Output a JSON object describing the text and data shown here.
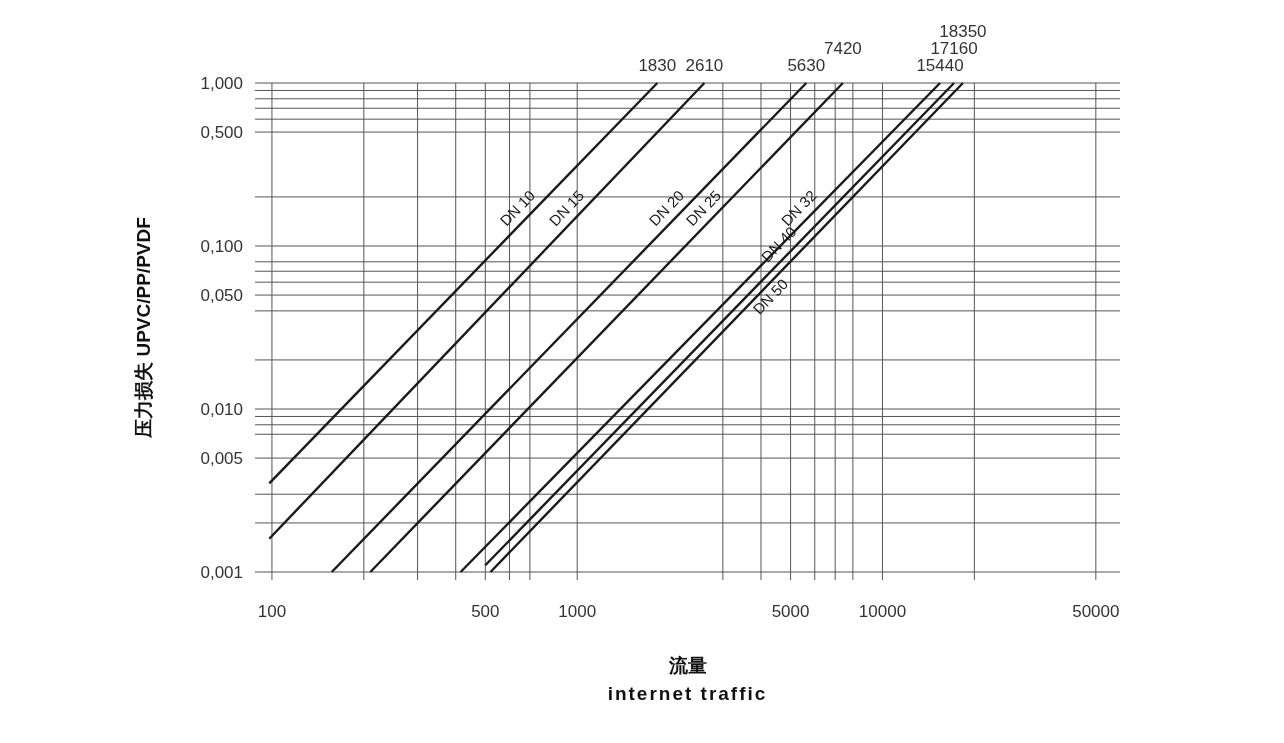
{
  "chart_data": {
    "type": "line",
    "xlabel": "流量\ninternet traffic",
    "ylabel": "压力损失  UPVC/PP/PVDF",
    "log": "xy",
    "grid": true,
    "legend": false,
    "marker": "none",
    "line_style": "solid",
    "xlim": [
      88,
      60000
    ],
    "ylim": [
      0.001,
      1
    ],
    "xticks": [
      100,
      {
        "value": 200,
        "label": null
      },
      {
        "value": 300,
        "label": null
      },
      {
        "value": 400,
        "label": null
      },
      500,
      {
        "value": 600,
        "label": null
      },
      {
        "value": 700,
        "label": null
      },
      1000,
      {
        "value": 3000,
        "label": null
      },
      {
        "value": 4000,
        "label": null
      },
      5000,
      {
        "value": 6000,
        "label": null
      },
      {
        "value": 7000,
        "label": null
      },
      {
        "value": 8000,
        "label": null
      },
      10000,
      {
        "value": 20000,
        "label": null
      },
      50000
    ],
    "yticks": [
      {
        "value": 1,
        "label": "1,000"
      },
      {
        "value": 0.9,
        "label": null
      },
      {
        "value": 0.8,
        "label": null
      },
      {
        "value": 0.7,
        "label": null
      },
      {
        "value": 0.6,
        "label": null
      },
      {
        "value": 0.5,
        "label": "0,500"
      },
      {
        "value": 0.2,
        "label": null
      },
      {
        "value": 0.1,
        "label": "0,100"
      },
      {
        "value": 0.08,
        "label": null
      },
      {
        "value": 0.07,
        "label": null
      },
      {
        "value": 0.06,
        "label": null
      },
      {
        "value": 0.05,
        "label": "0,050"
      },
      {
        "value": 0.04,
        "label": null
      },
      {
        "value": 0.02,
        "label": null
      },
      {
        "value": 0.01,
        "label": "0,010"
      },
      {
        "value": 0.009,
        "label": null
      },
      {
        "value": 0.008,
        "label": null
      },
      {
        "value": 0.007,
        "label": null
      },
      {
        "value": 0.005,
        "label": "0,005"
      },
      {
        "value": 0.003,
        "label": null
      },
      {
        "value": 0.002,
        "label": null
      },
      {
        "value": 0.001,
        "label": "0,001"
      }
    ],
    "series": [
      {
        "name": "DN 10",
        "color": "#1a1a1a",
        "x": [
          98,
          1830
        ],
        "values": [
          0.0035,
          1
        ]
      },
      {
        "name": "DN 15",
        "color": "#1a1a1a",
        "x": [
          98,
          2610
        ],
        "values": [
          0.0016,
          1
        ]
      },
      {
        "name": "DN 20",
        "color": "#1a1a1a",
        "x": [
          157,
          5630
        ],
        "values": [
          0.001,
          1
        ]
      },
      {
        "name": "DN 25",
        "color": "#1a1a1a",
        "x": [
          210,
          7420
        ],
        "values": [
          0.001,
          1
        ]
      },
      {
        "name": "DN 32",
        "color": "#1a1a1a",
        "x": [
          415,
          15440
        ],
        "values": [
          0.001,
          1
        ]
      },
      {
        "name": "DN 40",
        "color": "#1a1a1a",
        "x": [
          500,
          17160
        ],
        "values": [
          0.0011,
          1
        ]
      },
      {
        "name": "DN 50",
        "color": "#1a1a1a",
        "x": [
          520,
          18350
        ],
        "values": [
          0.001,
          1
        ]
      }
    ],
    "annotations": [
      {
        "text": "1830",
        "x": 1830,
        "y": 1
      },
      {
        "text": "2610",
        "x": 2610,
        "y": 1
      },
      {
        "text": "5630",
        "x": 5630,
        "y": 1
      },
      {
        "text": "7420",
        "x": 7420,
        "y": 1
      },
      {
        "text": "15440",
        "x": 15440,
        "y": 1
      },
      {
        "text": "17160",
        "x": 17160,
        "y": 1
      },
      {
        "text": "18350",
        "x": 18350,
        "y": 1
      }
    ]
  }
}
